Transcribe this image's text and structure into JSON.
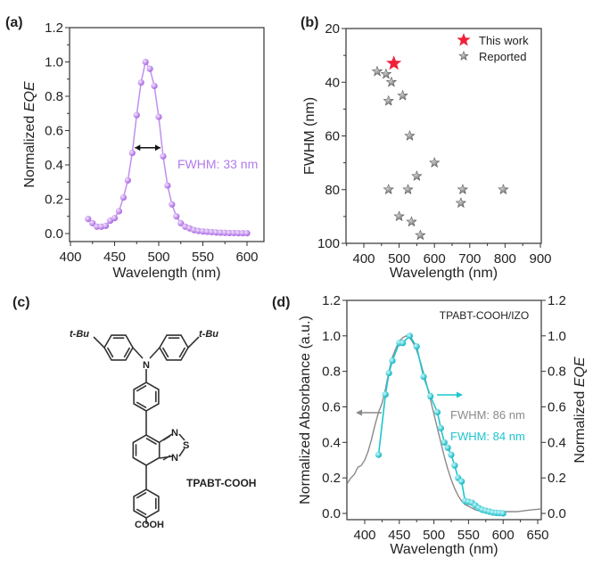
{
  "panels": {
    "a": "(a)",
    "b": "(b)",
    "c": "(c)",
    "d": "(d)"
  },
  "colors": {
    "purple": "#b37ae8",
    "cyan": "#1cc6cf",
    "gray": "#8a8a8a",
    "red": "#f0203a",
    "star_gray": "#7a7a7a"
  },
  "molecule": {
    "name": "TPABT-COOH",
    "tbu_left": "t-Bu",
    "tbu_right": "t-Bu",
    "n_amine": "N",
    "n1": "N",
    "s": "S",
    "n2": "N",
    "cooh": "COOH"
  },
  "chart_data": [
    {
      "id": "a",
      "type": "scatter-line",
      "xlabel": "Wavelength (nm)",
      "ylabel_prefix": "Normalized ",
      "ylabel_italic": "EQE",
      "xlim": [
        398,
        618
      ],
      "ylim": [
        -0.05,
        1.2
      ],
      "xticks": [
        400,
        450,
        500,
        550,
        600
      ],
      "yticks": [
        "0.0",
        "0.2",
        "0.4",
        "0.6",
        "0.8",
        "1.0",
        "1.2"
      ],
      "annotation": "FWHM: 33 nm",
      "fwhm_range": [
        471,
        504
      ],
      "series": [
        {
          "name": "EQE",
          "x": [
            420,
            425,
            430,
            435,
            440,
            445,
            450,
            455,
            460,
            465,
            470,
            475,
            480,
            485,
            490,
            495,
            500,
            505,
            510,
            515,
            520,
            525,
            530,
            535,
            540,
            545,
            550,
            555,
            560,
            565,
            570,
            575,
            580,
            585,
            590,
            595,
            600
          ],
          "y": [
            0.085,
            0.06,
            0.04,
            0.04,
            0.045,
            0.075,
            0.09,
            0.13,
            0.21,
            0.31,
            0.47,
            0.69,
            0.88,
            1.0,
            0.96,
            0.86,
            0.68,
            0.45,
            0.28,
            0.17,
            0.1,
            0.06,
            0.04,
            0.03,
            0.02,
            0.015,
            0.012,
            0.01,
            0.008,
            0.006,
            0.005,
            0.004,
            0.003,
            0.003,
            0.002,
            0.002,
            0.002
          ]
        }
      ]
    },
    {
      "id": "b",
      "type": "scatter",
      "xlabel": "Wavelength (nm)",
      "ylabel": "FWHM (nm)",
      "xlim": [
        350,
        900
      ],
      "ylim": [
        20,
        100
      ],
      "y_inverted": true,
      "xticks": [
        400,
        500,
        600,
        700,
        800,
        900
      ],
      "yticks": [
        20,
        40,
        60,
        80,
        100
      ],
      "legend": [
        "This work",
        "Reported"
      ],
      "legend_position": "top-right",
      "series": [
        {
          "name": "This work",
          "x": [
            485
          ],
          "y": [
            33
          ]
        },
        {
          "name": "Reported",
          "x": [
            438,
            463,
            478,
            510,
            470,
            530,
            600,
            550,
            470,
            525,
            680,
            795,
            675,
            500,
            535,
            560
          ],
          "y": [
            36,
            37,
            40,
            45,
            47,
            60,
            70,
            75,
            80,
            80,
            80,
            80,
            85,
            90,
            92,
            97
          ]
        }
      ]
    },
    {
      "id": "d",
      "type": "line",
      "xlabel": "Wavelength (nm)",
      "ylabel": "Normalized Absorbance (a.u.)",
      "ylabel_right_prefix": "Normalized ",
      "ylabel_right_italic": "EQE",
      "xlim": [
        374,
        655
      ],
      "ylim": [
        -0.035,
        1.2
      ],
      "xticks": [
        400,
        450,
        500,
        550,
        600,
        650
      ],
      "yticks": [
        "0.0",
        "0.2",
        "0.4",
        "0.6",
        "0.8",
        "1.0",
        "1.2"
      ],
      "title": "TPABT-COOH/IZO",
      "annotations": [
        "FWHM: 86 nm",
        "FWHM: 84 nm"
      ],
      "series": [
        {
          "name": "Absorbance",
          "x": [
            375,
            380,
            385,
            390,
            395,
            400,
            405,
            410,
            415,
            420,
            425,
            430,
            435,
            440,
            445,
            450,
            455,
            460,
            465,
            470,
            475,
            480,
            485,
            490,
            495,
            500,
            505,
            510,
            515,
            520,
            525,
            530,
            535,
            540,
            545,
            550,
            560,
            570,
            580,
            600,
            620,
            640,
            655
          ],
          "y": [
            0.17,
            0.2,
            0.22,
            0.26,
            0.27,
            0.3,
            0.35,
            0.42,
            0.5,
            0.57,
            0.62,
            0.7,
            0.8,
            0.88,
            0.93,
            0.97,
            0.99,
            1.0,
            0.99,
            0.96,
            0.92,
            0.86,
            0.79,
            0.72,
            0.64,
            0.56,
            0.48,
            0.4,
            0.32,
            0.25,
            0.19,
            0.14,
            0.1,
            0.07,
            0.05,
            0.04,
            0.02,
            0.01,
            0.01,
            0.01,
            0.01,
            0.02,
            0.025
          ]
        },
        {
          "name": "EQE",
          "x": [
            420,
            430,
            435,
            440,
            450,
            455,
            465,
            475,
            485,
            495,
            505,
            510,
            515,
            520,
            525,
            530,
            535,
            540,
            545,
            550,
            555,
            560,
            565,
            570,
            575,
            580,
            585,
            590,
            595,
            600
          ],
          "y": [
            0.33,
            0.67,
            0.79,
            0.86,
            0.96,
            0.96,
            1.0,
            0.94,
            0.77,
            0.66,
            0.57,
            0.48,
            0.4,
            0.37,
            0.33,
            0.27,
            0.2,
            0.18,
            0.07,
            0.065,
            0.06,
            0.045,
            0.03,
            0.02,
            0.015,
            0.01,
            0.005,
            0.003,
            0.002,
            0.0
          ]
        }
      ]
    }
  ]
}
